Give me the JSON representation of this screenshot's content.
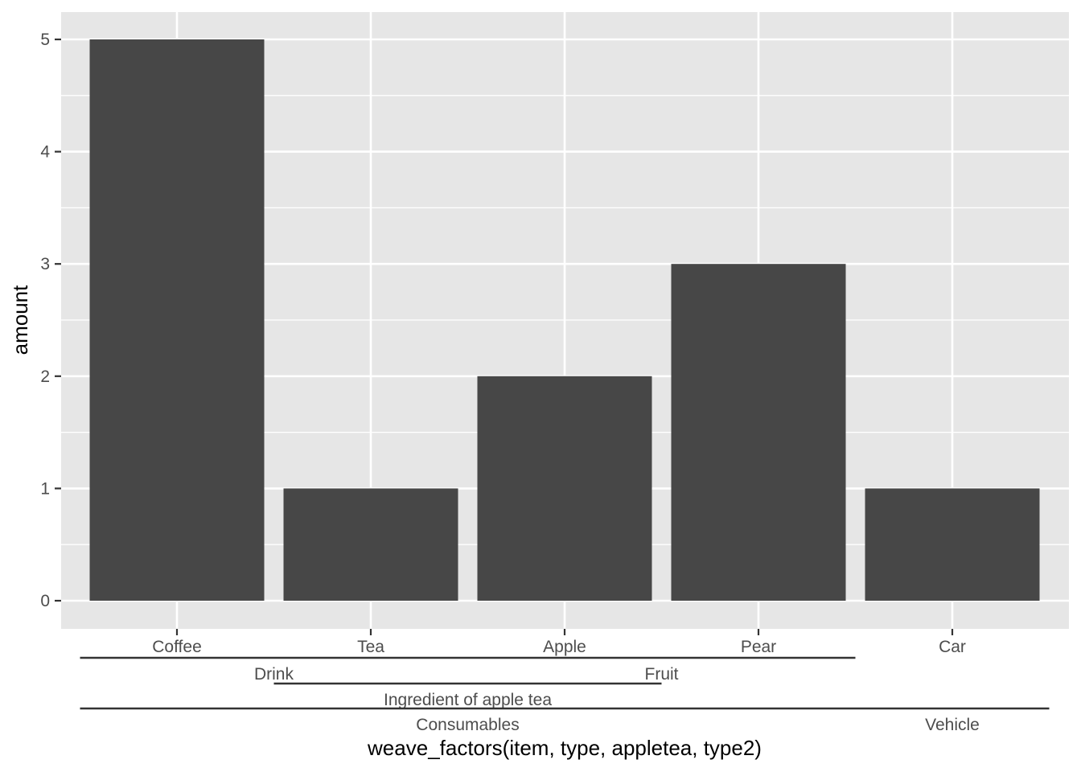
{
  "chart_data": {
    "type": "bar",
    "categories": [
      "Coffee",
      "Tea",
      "Apple",
      "Pear",
      "Car"
    ],
    "values": [
      5,
      1,
      2,
      3,
      1
    ],
    "xlabel": "weave_factors(item, type, appletea, type2)",
    "ylabel": "amount",
    "ylim": [
      0,
      5
    ],
    "yticks": [
      0,
      1,
      2,
      3,
      4,
      5
    ],
    "grid": true,
    "bar_color": "#474747",
    "panel_background": "#e6e6e6",
    "x_groups": [
      {
        "label": "Drink",
        "start": 0,
        "end": 1,
        "level": 1
      },
      {
        "label": "Fruit",
        "start": 2,
        "end": 3,
        "level": 1
      },
      {
        "label": "Ingredient of apple tea",
        "start": 1,
        "end": 2,
        "level": 2
      },
      {
        "label": "Consumables",
        "start": 0,
        "end": 3,
        "level": 3
      },
      {
        "label": "Vehicle",
        "start": 4,
        "end": 4,
        "level": 3
      }
    ]
  }
}
